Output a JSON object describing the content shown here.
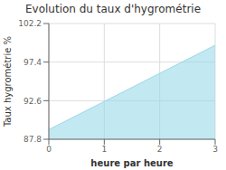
{
  "chart_data": {
    "type": "area",
    "title": "Evolution du taux d'hygrométrie",
    "x_label": "heure par heure",
    "y_label": "Taux hygrométrie %",
    "x": [
      0,
      3
    ],
    "series": [
      {
        "name": "Taux hygrométrie",
        "color": "#9ad8ea",
        "values": [
          89.0,
          99.5
        ]
      }
    ],
    "xlim": [
      0,
      3
    ],
    "ylim": [
      87.8,
      102.2
    ],
    "xticks": [
      0,
      1,
      2,
      3
    ],
    "yticks": [
      87.8,
      92.6,
      97.4,
      102.2
    ],
    "grid": true
  }
}
